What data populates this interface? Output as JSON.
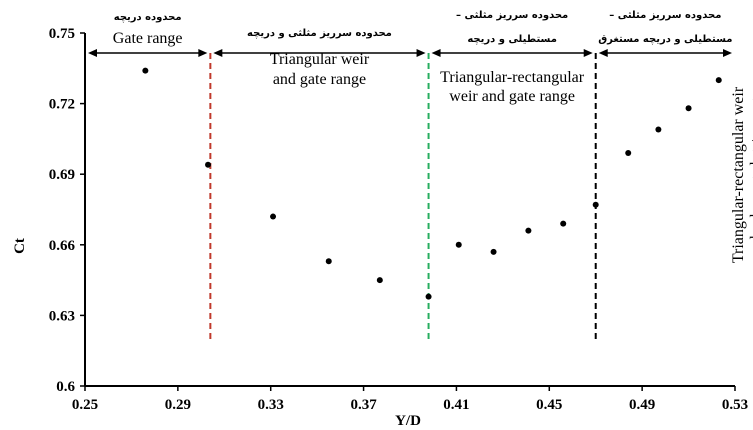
{
  "chart_data": {
    "type": "scatter",
    "xlabel": "Y/D",
    "ylabel": "Ct",
    "xlim": [
      0.25,
      0.53
    ],
    "ylim": [
      0.6,
      0.75
    ],
    "xticks": [
      "0.25",
      "0.29",
      "0.33",
      "0.37",
      "0.41",
      "0.45",
      "0.49",
      "0.53"
    ],
    "yticks": [
      "0.6",
      "0.63",
      "0.66",
      "0.69",
      "0.72",
      "0.75"
    ],
    "grid": false,
    "points": [
      {
        "x": 0.276,
        "y": 0.734
      },
      {
        "x": 0.303,
        "y": 0.694
      },
      {
        "x": 0.331,
        "y": 0.672
      },
      {
        "x": 0.355,
        "y": 0.653
      },
      {
        "x": 0.377,
        "y": 0.645
      },
      {
        "x": 0.398,
        "y": 0.638
      },
      {
        "x": 0.411,
        "y": 0.66
      },
      {
        "x": 0.426,
        "y": 0.657
      },
      {
        "x": 0.441,
        "y": 0.666
      },
      {
        "x": 0.456,
        "y": 0.669
      },
      {
        "x": 0.47,
        "y": 0.677
      },
      {
        "x": 0.484,
        "y": 0.699
      },
      {
        "x": 0.497,
        "y": 0.709
      },
      {
        "x": 0.51,
        "y": 0.718
      },
      {
        "x": 0.523,
        "y": 0.73
      }
    ],
    "dividers": [
      {
        "x": 0.304,
        "color": "#c0392b"
      },
      {
        "x": 0.398,
        "color": "#27ae60"
      },
      {
        "x": 0.47,
        "color": "#000000"
      }
    ],
    "regions": [
      {
        "from": 0.25,
        "to": 0.304,
        "label_fa": "محدوده دریچه",
        "label_en": [
          "Gate range"
        ]
      },
      {
        "from": 0.304,
        "to": 0.398,
        "label_fa": "محدوده سرریز مثلثی و دریچه",
        "label_en": [
          "Triangular weir",
          "and gate range"
        ]
      },
      {
        "from": 0.398,
        "to": 0.47,
        "label_fa": "محدوده سرریز مثلثی – مستطیلی و دریچه",
        "label_en": [
          "Triangular-rectangular",
          "weir and gate range"
        ]
      },
      {
        "from": 0.47,
        "to": 0.53,
        "label_fa": "محدوده سرریز مثلثی – مستطیلی و دریچه مستغرق",
        "label_en": [
          "Triangular-rectangular weir",
          "and submerged gate range"
        ]
      }
    ]
  }
}
